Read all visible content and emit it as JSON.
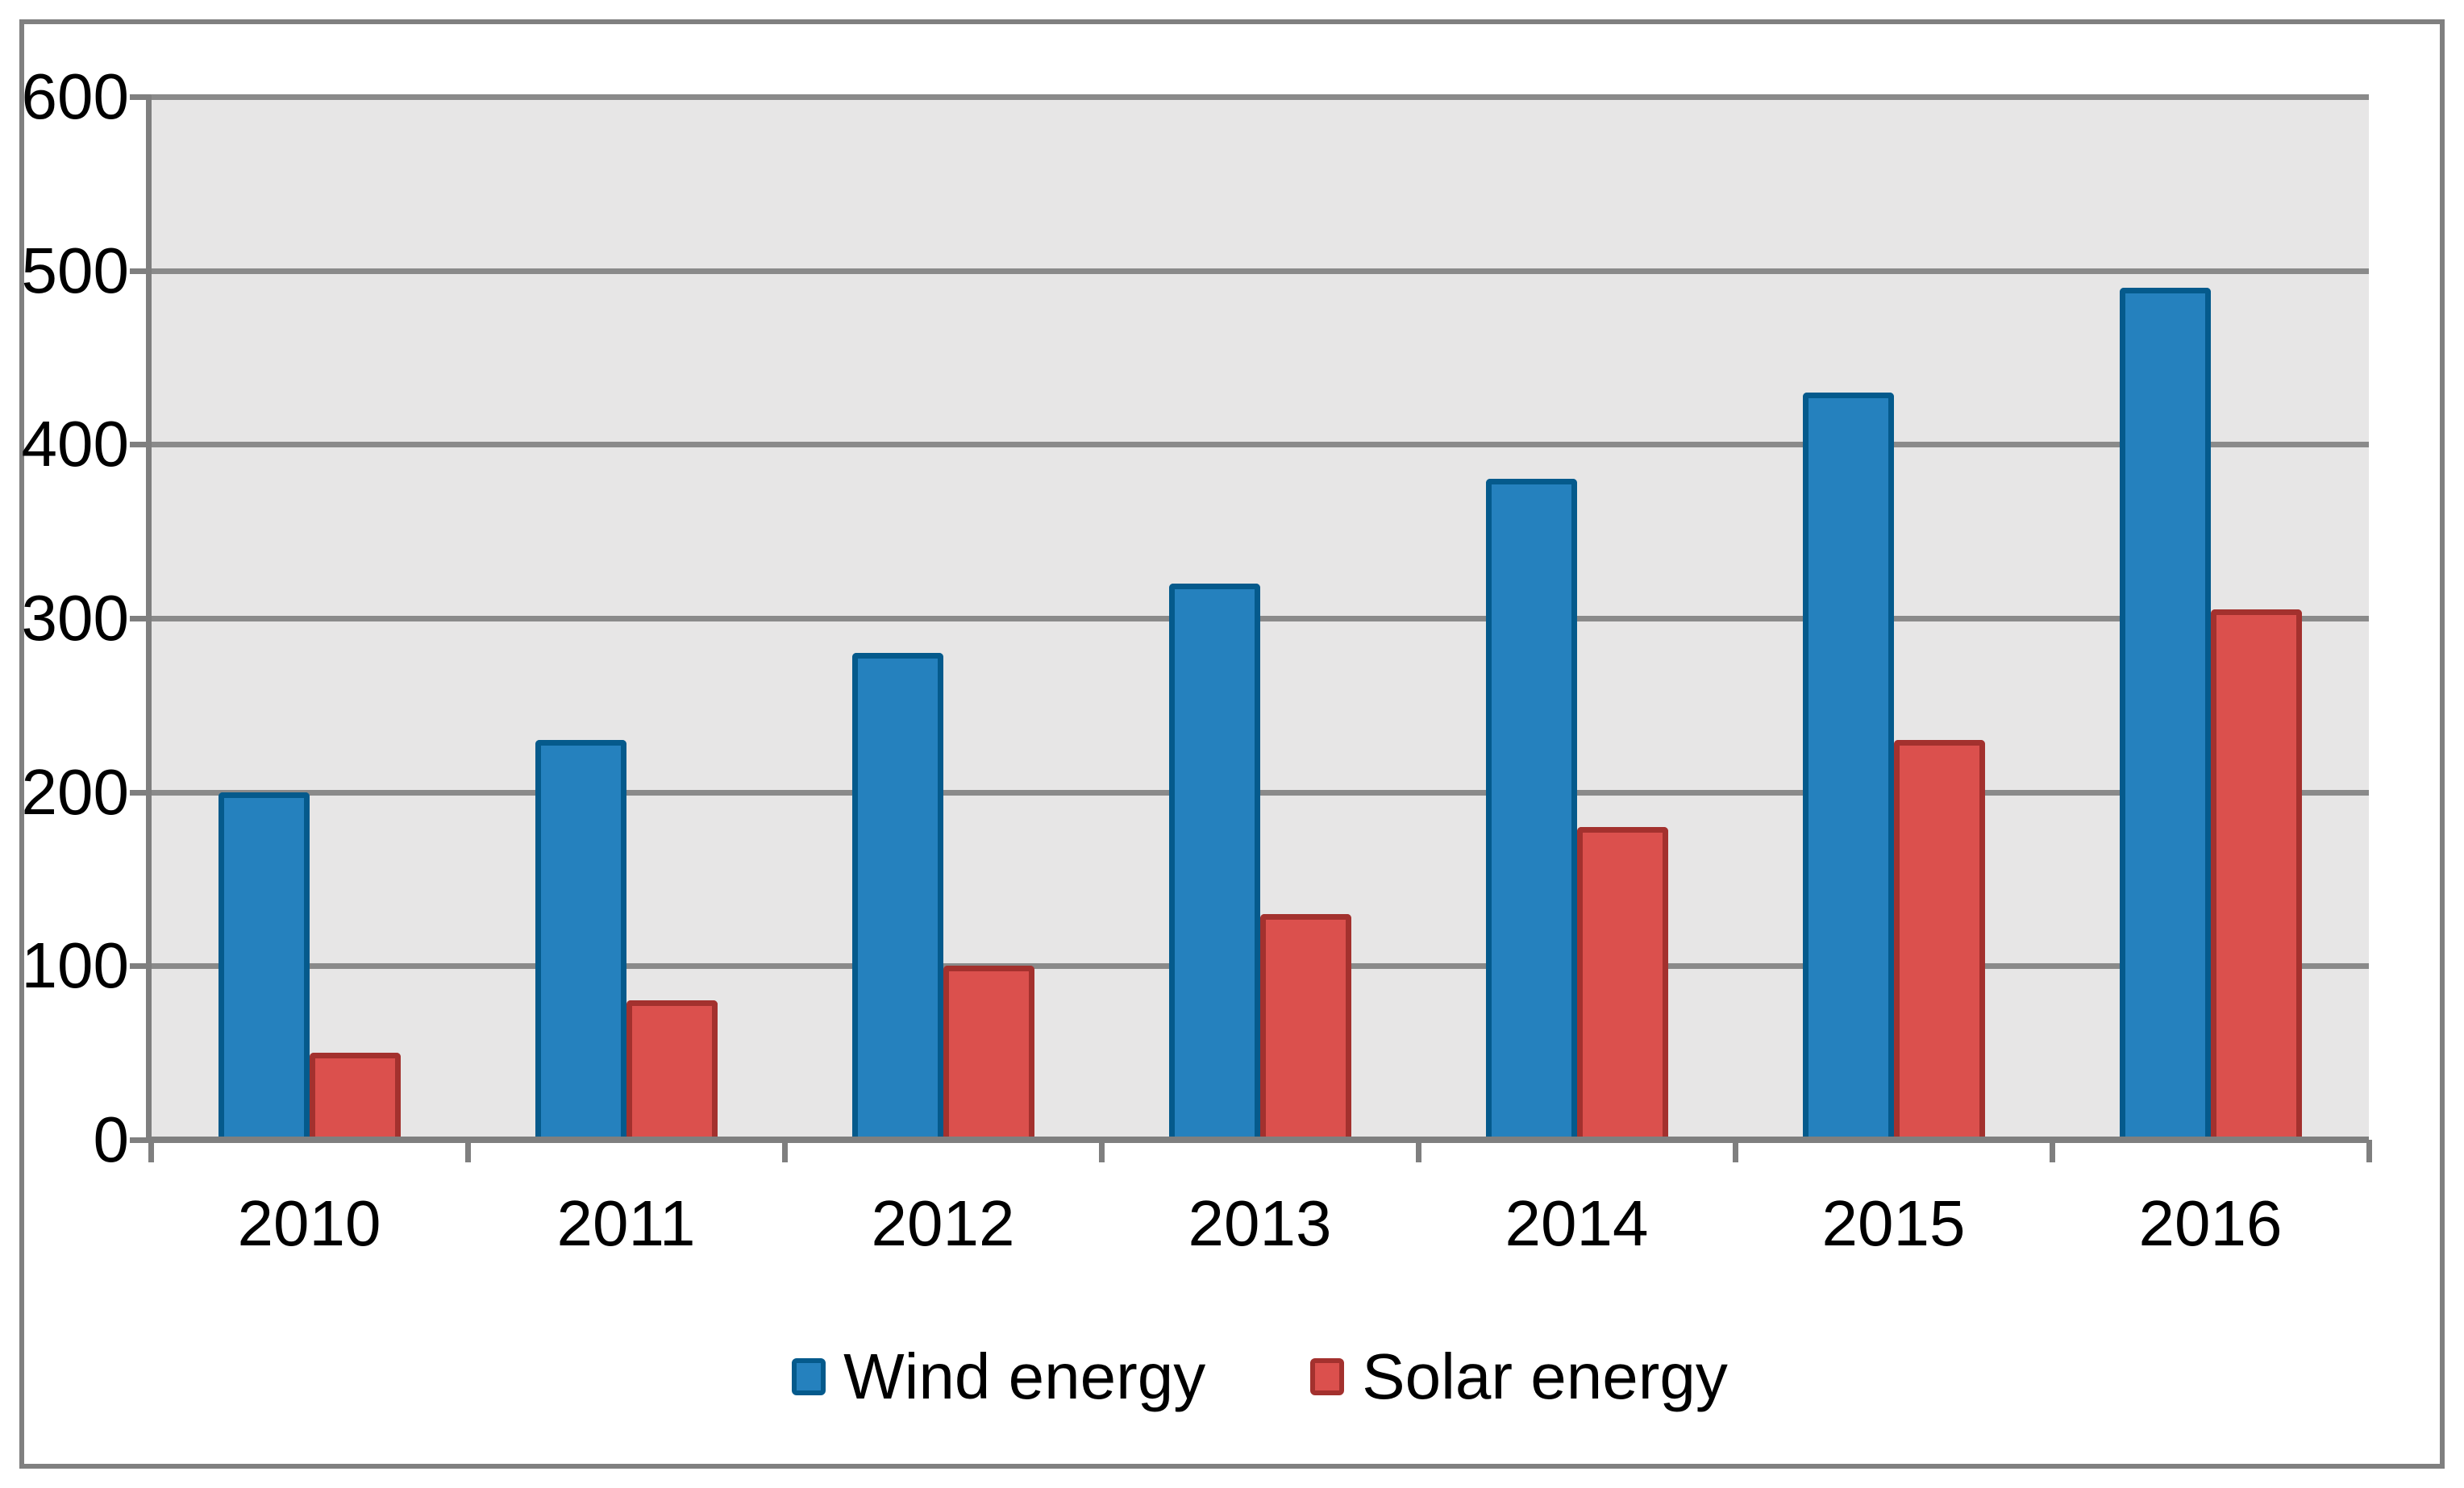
{
  "chart_data": {
    "type": "bar",
    "title": "",
    "xlabel": "",
    "ylabel": "",
    "categories": [
      "2010",
      "2011",
      "2012",
      "2013",
      "2014",
      "2015",
      "2016"
    ],
    "series": [
      {
        "name": "Wind energy",
        "color": "#2581BE",
        "border_color": "#055A8C",
        "values": [
          200,
          230,
          280,
          320,
          380,
          430,
          490
        ]
      },
      {
        "name": "Solar energy",
        "color": "#DB504D",
        "border_color": "#A3312E",
        "values": [
          50,
          80,
          100,
          130,
          180,
          230,
          305
        ]
      }
    ],
    "ylim": [
      0,
      600
    ],
    "yticks": [
      0,
      100,
      200,
      300,
      400,
      500,
      600
    ],
    "ytick_labels": [
      "0",
      "100",
      "200",
      "300",
      "400",
      "500",
      "600"
    ],
    "grid": true,
    "legend_position": "bottom",
    "plot_background": "#E7E6E6",
    "gridline_color": "#8A8A8A",
    "axis_color": "#7F7F7F",
    "frame_border_color": "#808080"
  },
  "legend": {
    "items": [
      {
        "label": "Wind energy"
      },
      {
        "label": "Solar energy"
      }
    ]
  }
}
